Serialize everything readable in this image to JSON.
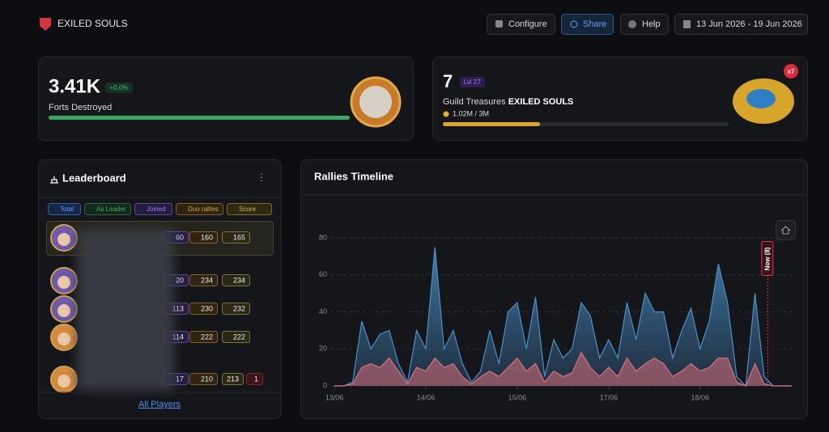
{
  "header": {
    "brand": "EXILED SOULS",
    "buttons": [
      "Configure",
      "Share",
      "Help"
    ],
    "date_range": "13 Jun 2026 - 19 Jun 2026"
  },
  "forts": {
    "value": "3.41K",
    "change": "+0.0%",
    "label": "Forts Destroyed",
    "bar": {
      "value": 100,
      "max": 100
    }
  },
  "treasures": {
    "value": "7",
    "level": "Lvl 27",
    "label": "Guild Treasures",
    "guild": "EXILED SOULS",
    "progress": "1.02M / 3M",
    "badge": "x7",
    "bar": {
      "value": 1.02,
      "max": 3
    }
  },
  "leaderboard": {
    "title": "Leaderboard",
    "filters": [
      "Total",
      "As Leader",
      "Joined",
      "Duo rallies",
      "Score"
    ],
    "rows": [
      {
        "joined": "60",
        "duo": "160",
        "score": "165"
      },
      {
        "joined": "20",
        "duo": "234",
        "score": "234"
      },
      {
        "joined": "113",
        "duo": "230",
        "score": "232"
      },
      {
        "joined": "114",
        "duo": "222",
        "score": "222"
      },
      {
        "joined": "17",
        "duo": "210",
        "score": "213",
        "extra": "1"
      }
    ],
    "footer": "All Players"
  },
  "rallies_chart": {
    "type": "area",
    "title": "Rallies Timeline",
    "x": [
      0,
      0.1,
      0.2,
      0.3,
      0.4,
      0.5,
      0.6,
      0.7,
      0.8,
      0.9,
      1,
      1.1,
      1.2,
      1.3,
      1.4,
      1.5,
      1.6,
      1.7,
      1.8,
      1.9,
      2,
      2.1,
      2.2,
      2.3,
      2.4,
      2.5,
      2.6,
      2.7,
      2.8,
      2.9,
      3,
      3.1,
      3.2,
      3.3,
      3.4,
      3.5,
      3.6,
      3.7,
      3.8,
      3.9,
      4,
      4.1,
      4.2,
      4.3,
      4.4,
      4.5,
      4.6,
      4.7,
      4.8,
      4.9,
      5
    ],
    "series": [
      {
        "color": "#4a90c9",
        "values": [
          0,
          0,
          2,
          35,
          20,
          28,
          30,
          12,
          2,
          30,
          20,
          75,
          20,
          30,
          12,
          2,
          8,
          30,
          12,
          40,
          45,
          20,
          48,
          5,
          25,
          15,
          20,
          45,
          38,
          15,
          25,
          15,
          45,
          25,
          50,
          40,
          40,
          15,
          30,
          42,
          20,
          35,
          66,
          45,
          5,
          0,
          50,
          5,
          0,
          0,
          0
        ]
      },
      {
        "color": "#d9707e",
        "values": [
          0,
          0,
          1,
          10,
          12,
          10,
          15,
          8,
          1,
          10,
          8,
          15,
          10,
          12,
          5,
          1,
          5,
          8,
          5,
          10,
          15,
          8,
          12,
          2,
          8,
          5,
          7,
          18,
          10,
          5,
          10,
          5,
          15,
          8,
          12,
          15,
          12,
          5,
          8,
          12,
          8,
          10,
          15,
          15,
          2,
          0,
          12,
          1,
          0,
          0,
          0
        ]
      }
    ],
    "xlim": [
      0,
      5.02
    ],
    "xticks": [
      {
        "value": 0,
        "label": "13/06"
      },
      {
        "value": 1,
        "label": "14/06"
      },
      {
        "value": 2,
        "label": "15/06"
      },
      {
        "value": 3,
        "label": "17/06"
      },
      {
        "value": 4,
        "label": "18/06"
      }
    ],
    "ylim": [
      0,
      80
    ],
    "yticks": [
      0,
      20,
      40,
      60,
      80
    ],
    "grid": true,
    "marker": {
      "x": 4.74,
      "label": "Now (8)",
      "color": "#e0344a"
    }
  }
}
